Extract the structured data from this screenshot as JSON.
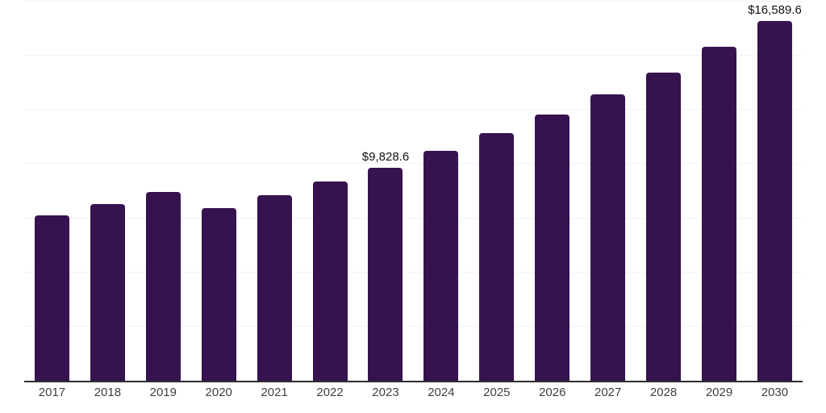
{
  "chart_data": {
    "type": "bar",
    "title": "",
    "xlabel": "",
    "ylabel": "",
    "categories": [
      "2017",
      "2018",
      "2019",
      "2020",
      "2021",
      "2022",
      "2023",
      "2024",
      "2025",
      "2026",
      "2027",
      "2028",
      "2029",
      "2030"
    ],
    "values": [
      7630,
      8150,
      8710,
      7970,
      8560,
      9200,
      9828.6,
      10610,
      11430,
      12290,
      13220,
      14220,
      15410,
      16589.6
    ],
    "point_labels": [
      "",
      "",
      "",
      "",
      "",
      "",
      "$9,828.6",
      "",
      "",
      "",
      "",
      "",
      "",
      "$16,589.6"
    ],
    "ylim": [
      0,
      17500
    ],
    "gridline_values": [
      2500,
      5000,
      7500,
      10000,
      12500,
      15000,
      17500
    ],
    "grid": "horizontal-only",
    "legend_position": "none",
    "colors": {
      "bar": "#36124E",
      "gridline": "#f3f3f3",
      "axis_line": "#2e2e2e",
      "tick_label": "#3f3f3f",
      "value_label": "#111111",
      "background": "#ffffff"
    }
  }
}
